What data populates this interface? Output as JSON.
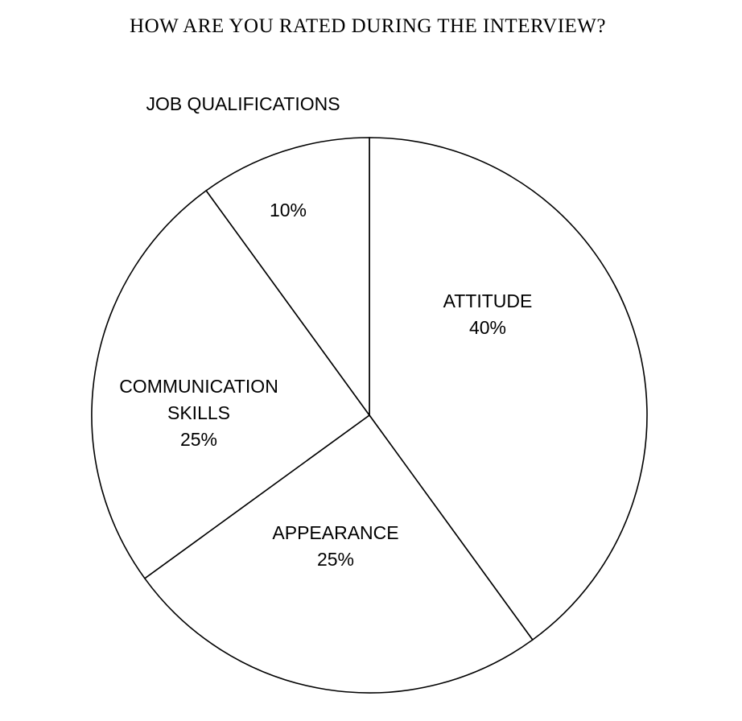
{
  "chart_data": {
    "type": "pie",
    "title": "HOW ARE YOU RATED DURING THE INTERVIEW?",
    "slices": [
      {
        "label": "ATTITUDE",
        "label_lines": [
          "ATTITUDE"
        ],
        "value": 40,
        "value_label": "40%"
      },
      {
        "label": "APPEARANCE",
        "label_lines": [
          "APPEARANCE"
        ],
        "value": 25,
        "value_label": "25%"
      },
      {
        "label": "COMMUNICATION SKILLS",
        "label_lines": [
          "COMMUNICATION",
          "SKILLS"
        ],
        "value": 25,
        "value_label": "25%"
      },
      {
        "label": "JOB QUALIFICATIONS",
        "label_lines": [
          "JOB QUALIFICATIONS"
        ],
        "value": 10,
        "value_label": "10%"
      }
    ],
    "start": "top",
    "direction": "clockwise",
    "fill_color": "#ffffff",
    "stroke_color": "#000000",
    "legend": "none"
  }
}
